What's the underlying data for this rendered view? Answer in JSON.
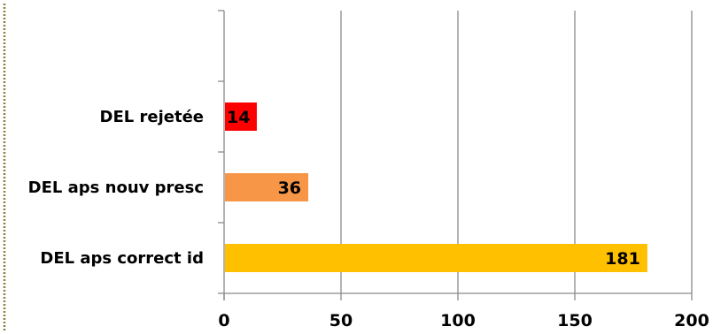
{
  "chart_data": {
    "type": "bar",
    "orientation": "horizontal",
    "categories": [
      "DEL rejetée",
      "DEL aps nouv presc",
      "DEL aps correct id"
    ],
    "values": [
      14,
      36,
      181
    ],
    "colors": [
      "#ff0000",
      "#f79646",
      "#ffc000"
    ],
    "xlim": [
      0,
      200
    ],
    "xticks": [
      0,
      50,
      100,
      150,
      200
    ],
    "grid": true,
    "data_labels": [
      "14",
      "36",
      "181"
    ],
    "title": "",
    "xlabel": "",
    "ylabel": ""
  }
}
